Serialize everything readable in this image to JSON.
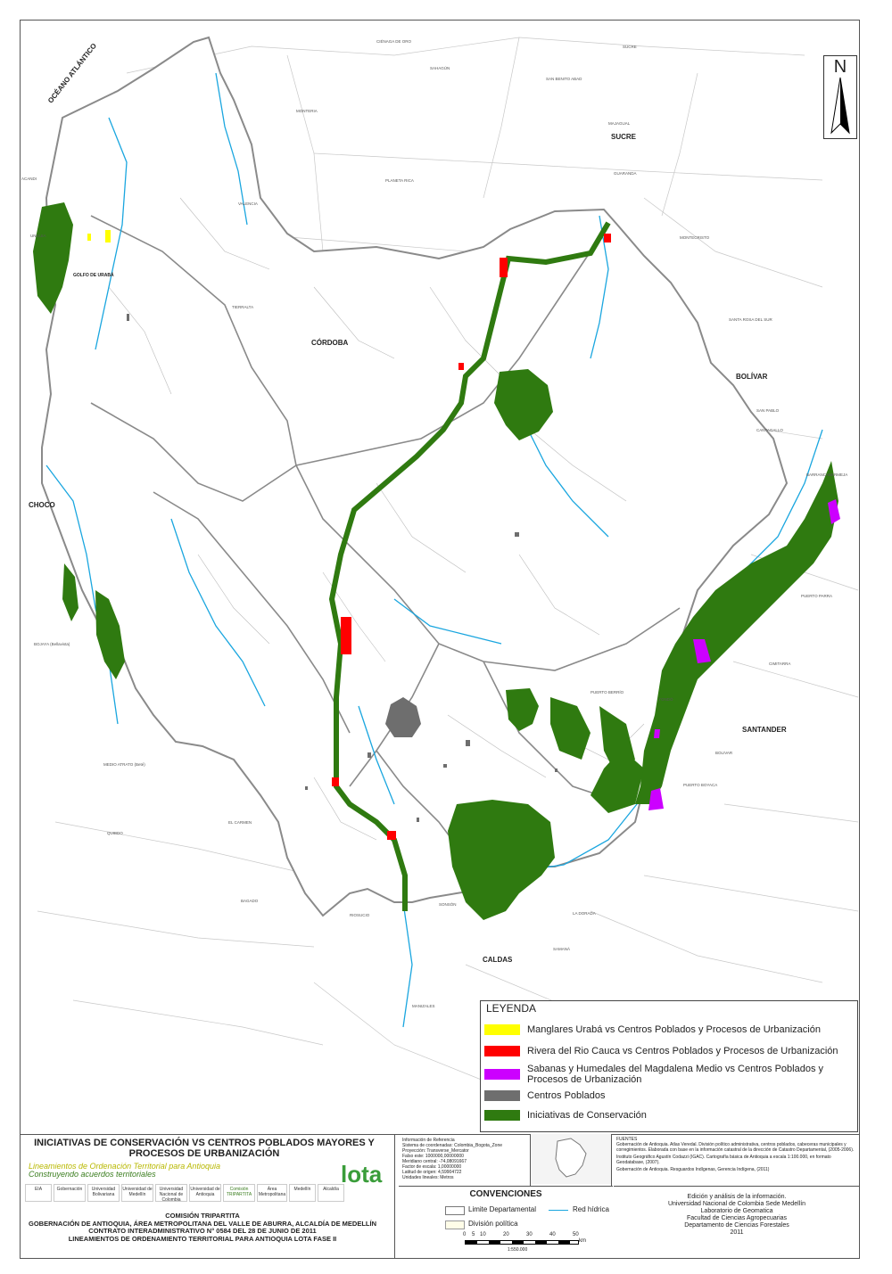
{
  "map": {
    "ocean_label": "OCÉANO ATLÁNTICO",
    "north_letter": "N",
    "departments": {
      "cordoba": "CÓRDOBA",
      "sucre": "SUCRE",
      "bolivar": "BOLÍVAR",
      "choco": "CHOCO",
      "santander": "SANTANDER",
      "caldas": "CALDAS"
    },
    "place_labels": {
      "golfo": "GOLFO DE URABÁ",
      "monteria": "MONTERIA",
      "cienaga": "CIÉNAGA DE ORO",
      "sahagun": "SAHAGÚN",
      "planeta_rica": "PLANETA RICA",
      "san_benito": "SAN BENITO ABAD",
      "majagual": "MAJAGUAL",
      "sucre_mun": "SUCRE",
      "guaranda": "GUARANDA",
      "montecristo": "MONTECRISTO",
      "santa_rosa": "SANTA ROSA DEL SUR",
      "cantagallo": "CANTAGALLO",
      "san_pablo": "SAN PABLO",
      "cimitarra": "CIMITARRA",
      "puerto_parra": "PUERTO PARRA",
      "bolivar_mun": "BOLIVAR",
      "puerto_boyaca": "PUERTO BOYACA",
      "el_carmen": "EL CARMEN",
      "quibdo": "QUIBDO",
      "bagado": "BAGADO",
      "riosucio": "RIOSUCIO",
      "tierralta": "TIERRALTA",
      "valencia": "VALENCIA",
      "bojaya": "BOJAYA (Bellavista)",
      "medio_atrato": "MEDIO ATRATO (Beté)",
      "unguia": "UNGUIA",
      "acandi": "ACANDI",
      "la_dorada": "LA DORADA",
      "samana": "SAMANÁ",
      "manizales": "MANIZALES",
      "sonson": "SONSÓN",
      "puerto_berrio": "PUERTO BERRÍO",
      "yondo": "YONDÓ",
      "barrancabermeja": "BARRANCABERMEJA"
    }
  },
  "legend": {
    "title": "LEYENDA",
    "items": [
      {
        "label": "Manglares Urabá vs Centros Poblados y Procesos de Urbanización",
        "color": "#ffff00"
      },
      {
        "label": "Rivera del Rio Cauca vs Centros Poblados y Procesos de Urbanización",
        "color": "#ff0000"
      },
      {
        "label": "Sabanas y Humedales del Magdalena Medio vs Centros Poblados y Procesos de Urbanización",
        "color": "#cc00ff"
      },
      {
        "label": "Centros Poblados",
        "color": "#6e6e6e"
      },
      {
        "label": "Iniciativas de Conservación",
        "color": "#2f7a10"
      }
    ]
  },
  "colors": {
    "conservation": "#2f7a10",
    "river": "#1aa6df",
    "boundary": "#888888"
  },
  "footer": {
    "title": "INICIATIVAS DE CONSERVACIÓN VS CENTROS POBLADOS MAYORES Y PROCESOS DE URBANIZACIÓN",
    "subtitle1": "Lineamientos de Ordenación Territorial para Antioquia",
    "subtitle2": "Construyendo acuerdos territoriales",
    "logos": [
      "EIA",
      "Gobernación",
      "Universidad Bolivariana",
      "Universidad de Medellín",
      "Universidad Nacional de Colombia",
      "Universidad de Antioquia",
      "Comisión TRIPARTITA",
      "Área Metropolitana",
      "Medellín",
      "Alcaldía"
    ],
    "lota": "lota",
    "comision": [
      "COMISIÓN TRIPARTITA",
      "GOBERNACIÓN DE ANTIOQUIA, ÁREA METROPOLITANA DEL VALLE DE ABURRA, ALCALDÍA DE MEDELLÍN",
      "CONTRATO INTERADMINISTRATIVO  N° 0584 DEL 28 DE JUNIO DE 2011",
      "LINEAMIENTOS DE ORDENAMIENTO TERRITORIAL PARA ANTIOQUIA LOTA FASE II"
    ],
    "reference": [
      "Información de Referencia",
      "Sistema de coordenadas: Colombia_Bogota_Zone",
      "Proyección: Transverse_Mercator",
      "Falso este: 1000000,00000000",
      "Meridiano central: -74,08091667",
      "Factor de escala: 1,00000000",
      "Latitud de origen: 4,59904722",
      "Unidades lineales: Metros"
    ],
    "fuentes": [
      "FUENTES",
      "Gobernación de Antioquia. Atlas Veredal. División político administrativa, centros poblados, cabeceras municipales y corregimientos. Elaborada con base en la información catastral de la dirección de Catastro Departamental, (2005-2006).",
      "Instituto Geográfico Agustín Codazzi (IGAC). Cartografía básica de Antioquia a escala 1:100.000, en formato Geodatabase, (2007).",
      "Gobernación de Antioquia. Resguardos Indígenas, Gerencia Indígena, (2011)"
    ],
    "conventions": {
      "title": "CONVENCIONES",
      "limite": "Limite Departamental",
      "red": "Red hídrica",
      "division": "División política",
      "scale_ticks": [
        "0",
        "5",
        "10",
        "20",
        "30",
        "40",
        "50"
      ],
      "scale_unit": "km",
      "scale_ratio": "1:550.000"
    },
    "credits": [
      "Edición y análisis de la información.",
      "Universidad Nacional de Colombia Sede Medellín",
      "Laboratorio de Geomatica",
      "Facultad de Ciencias Agropecuarias",
      "Departamento de Ciencias Forestales",
      "2011"
    ]
  }
}
